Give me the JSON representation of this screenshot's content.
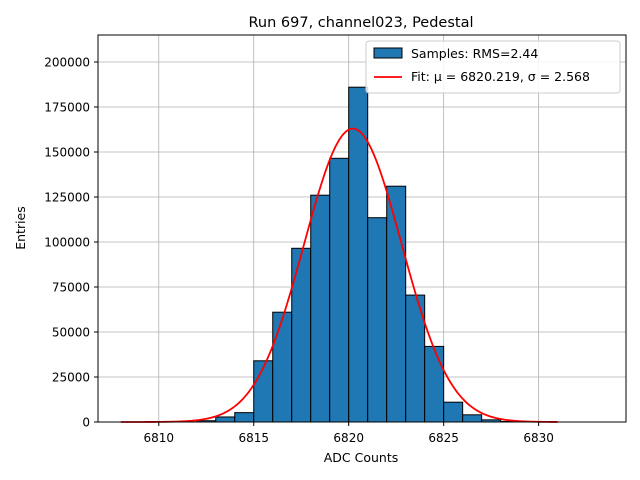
{
  "chart_data": {
    "type": "bar",
    "title": "Run 697, channel023, Pedestal",
    "xlabel": "ADC Counts",
    "ylabel": "Entries",
    "xlim": [
      6806.8,
      6834.6
    ],
    "ylim": [
      0,
      215000
    ],
    "grid": true,
    "legend_position": "top-right",
    "x_ticks": [
      6810,
      6815,
      6820,
      6825,
      6830
    ],
    "y_ticks": [
      0,
      25000,
      50000,
      75000,
      100000,
      125000,
      150000,
      175000,
      200000
    ],
    "histogram": {
      "name": "Samples: RMS=2.44",
      "color": "#1f77b4",
      "edge_color": "#000000",
      "bin_width": 1,
      "bins": [
        {
          "x0": 6812,
          "value": 700
        },
        {
          "x0": 6813,
          "value": 2800
        },
        {
          "x0": 6814,
          "value": 5200
        },
        {
          "x0": 6815,
          "value": 34000
        },
        {
          "x0": 6816,
          "value": 61000
        },
        {
          "x0": 6817,
          "value": 96500
        },
        {
          "x0": 6818,
          "value": 126000
        },
        {
          "x0": 6819,
          "value": 146500
        },
        {
          "x0": 6820,
          "value": 186000
        },
        {
          "x0": 6821,
          "value": 113500
        },
        {
          "x0": 6822,
          "value": 131000
        },
        {
          "x0": 6823,
          "value": 70500
        },
        {
          "x0": 6824,
          "value": 42000
        },
        {
          "x0": 6825,
          "value": 11000
        },
        {
          "x0": 6826,
          "value": 4000
        },
        {
          "x0": 6827,
          "value": 1200
        },
        {
          "x0": 6828,
          "value": 300
        }
      ]
    },
    "fit": {
      "name": "Fit: μ = 6820.219, σ = 2.568",
      "color": "#ff0000",
      "mu": 6820.219,
      "sigma": 2.568,
      "amplitude": 163000,
      "x_range": [
        6808,
        6831
      ]
    }
  }
}
